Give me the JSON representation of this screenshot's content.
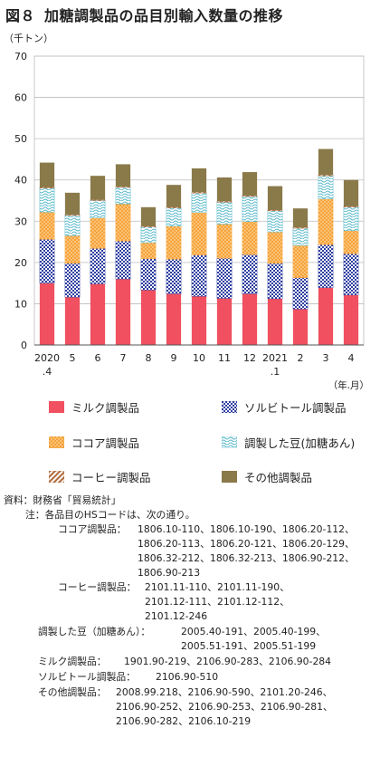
{
  "header": {
    "figure_no": "図８",
    "title": "加糖調製品の品目別輸入数量の推移"
  },
  "chart_data": {
    "type": "bar",
    "stacked": true,
    "y_unit": "（千トン）",
    "x_unit": "（年.月）",
    "ylim": [
      0,
      70
    ],
    "y_ticks": [
      0,
      10,
      20,
      30,
      40,
      50,
      60,
      70
    ],
    "categories": [
      "2020.4",
      "5",
      "6",
      "7",
      "8",
      "9",
      "10",
      "11",
      "12",
      "2021.1",
      "2",
      "3",
      "4"
    ],
    "category_labels": [
      [
        "2020",
        ".4"
      ],
      [
        "5"
      ],
      [
        "6"
      ],
      [
        "7"
      ],
      [
        "8"
      ],
      [
        "9"
      ],
      [
        "10"
      ],
      [
        "11"
      ],
      [
        "12"
      ],
      [
        "2021",
        ".1"
      ],
      [
        "2"
      ],
      [
        "3"
      ],
      [
        "4"
      ]
    ],
    "series": [
      {
        "name": "ミルク調製品",
        "color": "#f0505f",
        "pattern": "solid",
        "values": [
          15.0,
          11.6,
          14.8,
          16.0,
          13.3,
          12.4,
          11.8,
          11.3,
          12.4,
          11.2,
          8.7,
          13.9,
          12.1
        ]
      },
      {
        "name": "ソルビトール調製品",
        "color": "#2f3fa0",
        "pattern": "checker",
        "values": [
          10.6,
          8.2,
          8.6,
          9.2,
          7.6,
          8.4,
          10.0,
          9.7,
          9.5,
          8.6,
          7.6,
          10.4,
          10.0
        ]
      },
      {
        "name": "ココア調製品",
        "color": "#f7a33a",
        "pattern": "dots",
        "values": [
          6.6,
          6.7,
          7.4,
          9.0,
          3.9,
          8.0,
          10.3,
          8.3,
          8.0,
          7.6,
          7.8,
          11.1,
          5.6
        ]
      },
      {
        "name": "調製した豆(加糖あん)",
        "color": "#55b7c9",
        "pattern": "waves",
        "values": [
          5.8,
          4.9,
          4.2,
          4.0,
          3.8,
          4.4,
          4.7,
          5.3,
          6.1,
          5.1,
          4.2,
          5.6,
          5.7
        ]
      },
      {
        "name": "コーヒー調製品",
        "color": "#b06a3b",
        "pattern": "diagonal",
        "values": [
          0.2,
          0.2,
          0.2,
          0.2,
          0.2,
          0.2,
          0.2,
          0.2,
          0.2,
          0.2,
          0.2,
          0.2,
          0.2
        ]
      },
      {
        "name": "その他調製品",
        "color": "#8a7a4a",
        "pattern": "solid",
        "values": [
          6.0,
          5.3,
          5.8,
          5.4,
          4.6,
          5.4,
          5.8,
          5.8,
          5.7,
          5.8,
          4.6,
          6.3,
          6.4
        ]
      }
    ],
    "grid": true,
    "legend_position": "below"
  },
  "notes": {
    "source_label": "資料：",
    "source_text": "財務省「貿易統計」",
    "note_label": "注：",
    "note_text": "各品目のHSコードは、次の通り。",
    "items": [
      {
        "label": "ココア調製品：",
        "lines": [
          "1806.10-110、1806.10-190、1806.20-112、",
          "1806.20-113、1806.20-121、1806.20-129、",
          "1806.32-212、1806.32-213、1806.90-212、",
          "1806.90-213"
        ]
      },
      {
        "label": "コーヒー調製品：",
        "lines": [
          "2101.11-110、2101.11-190、",
          "2101.12-111、2101.12-112、",
          "2101.12-246"
        ]
      },
      {
        "label": "調製した豆（加糖あん）：",
        "lines": [
          "2005.40-191、2005.40-199、",
          "2005.51-191、2005.51-199"
        ]
      },
      {
        "label": "ミルク調製品：",
        "lines": [
          "1901.90-219、2106.90-283、2106.90-284"
        ]
      },
      {
        "label": "ソルビトール調製品：",
        "lines": [
          "2106.90-510"
        ]
      },
      {
        "label": "その他調製品：",
        "lines": [
          "2008.99.218、2106.90-590、2101.20-246、",
          "2106.90-252、2106.90-253、2106.90-281、",
          "2106.90-282、2106.10-219"
        ]
      }
    ]
  }
}
